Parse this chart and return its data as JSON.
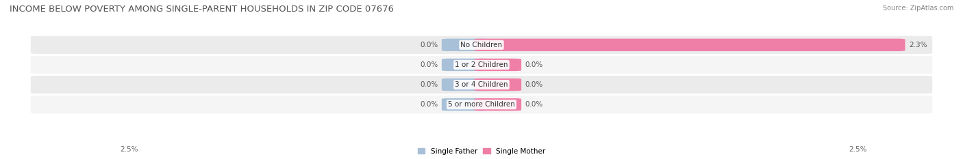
{
  "title": "INCOME BELOW POVERTY AMONG SINGLE-PARENT HOUSEHOLDS IN ZIP CODE 07676",
  "source": "Source: ZipAtlas.com",
  "categories": [
    "No Children",
    "1 or 2 Children",
    "3 or 4 Children",
    "5 or more Children"
  ],
  "single_father": [
    0.0,
    0.0,
    0.0,
    0.0
  ],
  "single_mother": [
    2.3,
    0.0,
    0.0,
    0.0
  ],
  "xlim": [
    -2.5,
    2.5
  ],
  "father_color": "#a8c0d8",
  "mother_color": "#f07fa8",
  "row_colors": [
    "#ebebeb",
    "#f5f5f5",
    "#ebebeb",
    "#f5f5f5"
  ],
  "title_fontsize": 9.5,
  "label_fontsize": 7.5,
  "value_fontsize": 7.5,
  "source_fontsize": 7.0,
  "legend_fontsize": 7.5,
  "bar_height": 0.55,
  "axis_label_left": "2.5%",
  "axis_label_right": "2.5%",
  "father_label_color": "#555555",
  "mother_label_color": "#555555",
  "cat_label_color": "#333333",
  "title_color": "#555555",
  "source_color": "#888888"
}
